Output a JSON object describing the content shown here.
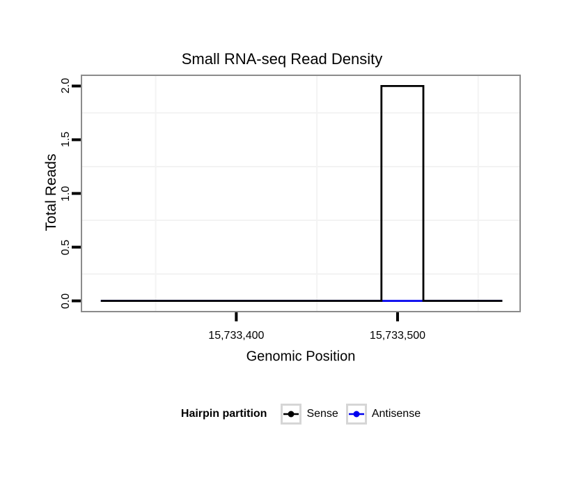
{
  "chart_data": {
    "type": "line",
    "subtype": "step-density",
    "title": "Small RNA-seq Read Density",
    "xlabel": "Genomic Position",
    "ylabel": "Total Reads",
    "xlim": [
      15733304,
      15733576
    ],
    "ylim": [
      -0.1,
      2.1
    ],
    "x_ticks": [
      {
        "value": 15733400,
        "label": "15,733,400"
      },
      {
        "value": 15733500,
        "label": "15,733,500"
      }
    ],
    "y_ticks": [
      {
        "value": 0.0,
        "label": "0.0"
      },
      {
        "value": 0.5,
        "label": "0.5"
      },
      {
        "value": 1.0,
        "label": "1.0"
      },
      {
        "value": 1.5,
        "label": "1.5"
      },
      {
        "value": 2.0,
        "label": "2.0"
      }
    ],
    "x_minor_gridlines": [
      15733350,
      15733450,
      15733550
    ],
    "y_minor_gridlines": [
      0.25,
      0.75,
      1.25,
      1.75
    ],
    "grid": "minor gridlines only, very faint",
    "legend": {
      "title": "Hairpin partition",
      "position": "bottom",
      "entries": [
        {
          "label": "Sense",
          "color": "#000000"
        },
        {
          "label": "Antisense",
          "color": "#0000ee"
        }
      ]
    },
    "series": [
      {
        "name": "Antisense",
        "color": "#0000ee",
        "points": [
          [
            15733316,
            0
          ],
          [
            15733565,
            0
          ]
        ]
      },
      {
        "name": "Sense",
        "color": "#000000",
        "points": [
          [
            15733316,
            0
          ],
          [
            15733490,
            0
          ],
          [
            15733490,
            2
          ],
          [
            15733516,
            2
          ],
          [
            15733516,
            0
          ],
          [
            15733565,
            0
          ]
        ]
      }
    ],
    "colors": {
      "background": "#ffffff",
      "panel_border": "#8b8b8b",
      "grid_minor": "#f3f3f3",
      "tick": "#000000",
      "legend_key_border": "#d6d6d6",
      "text": "#000000"
    }
  }
}
